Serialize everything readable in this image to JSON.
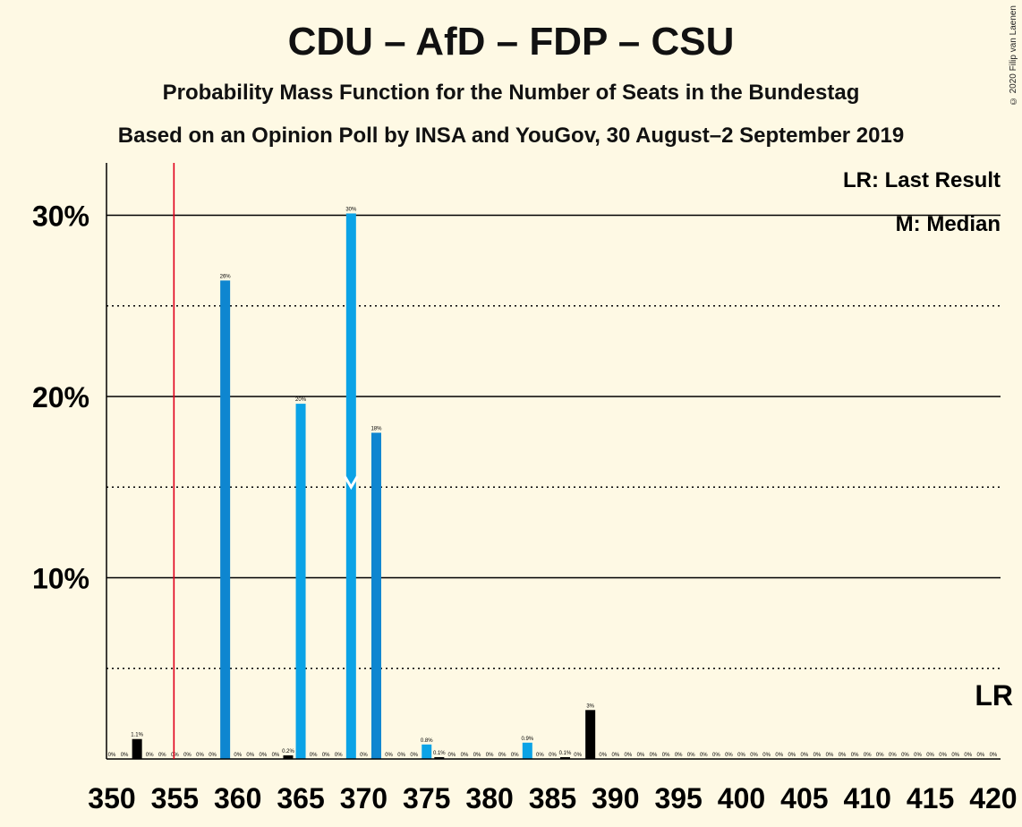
{
  "chart_data": {
    "type": "bar",
    "title": "CDU – AfD – FDP – CSU",
    "subtitle": "Probability Mass Function for the Number of Seats in the Bundestag",
    "subtitle2": "Based on an Opinion Poll by INSA and YouGov, 30 August–2 September 2019",
    "copyright": "© 2020 Filip van Laenen",
    "x_ticks": [
      "350",
      "355",
      "360",
      "365",
      "370",
      "375",
      "380",
      "385",
      "390",
      "395",
      "400",
      "405",
      "410",
      "415",
      "420"
    ],
    "y_ticks": [
      "10%",
      "20%",
      "30%"
    ],
    "xlim": [
      349.5,
      420.5
    ],
    "ylim": [
      0,
      33
    ],
    "legend": {
      "lr": "LR: Last Result",
      "m": "M: Median"
    },
    "last_result": 355,
    "median": 369,
    "lr_label": "LR",
    "bars": [
      {
        "seat": 350,
        "value": 0,
        "label": "0%",
        "color": "#000000"
      },
      {
        "seat": 351,
        "value": 0,
        "label": "0%",
        "color": "#000000"
      },
      {
        "seat": 352,
        "value": 1.1,
        "label": "1.1%",
        "color": "#000000"
      },
      {
        "seat": 353,
        "value": 0,
        "label": "0%",
        "color": "#000000"
      },
      {
        "seat": 354,
        "value": 0,
        "label": "0%",
        "color": "#000000"
      },
      {
        "seat": 355,
        "value": 0,
        "label": "0%",
        "color": "#000000"
      },
      {
        "seat": 356,
        "value": 0,
        "label": "0%",
        "color": "#000000"
      },
      {
        "seat": 357,
        "value": 0,
        "label": "0%",
        "color": "#000000"
      },
      {
        "seat": 358,
        "value": 0,
        "label": "0%",
        "color": "#000000"
      },
      {
        "seat": 359,
        "value": 26.4,
        "label": "26%",
        "color": "#0e86d0"
      },
      {
        "seat": 360,
        "value": 0,
        "label": "0%",
        "color": "#000000"
      },
      {
        "seat": 361,
        "value": 0,
        "label": "0%",
        "color": "#000000"
      },
      {
        "seat": 362,
        "value": 0,
        "label": "0%",
        "color": "#000000"
      },
      {
        "seat": 363,
        "value": 0,
        "label": "0%",
        "color": "#000000"
      },
      {
        "seat": 364,
        "value": 0.2,
        "label": "0.2%",
        "color": "#000000"
      },
      {
        "seat": 365,
        "value": 19.6,
        "label": "20%",
        "color": "#0ba3e6"
      },
      {
        "seat": 366,
        "value": 0,
        "label": "0%",
        "color": "#000000"
      },
      {
        "seat": 367,
        "value": 0,
        "label": "0%",
        "color": "#000000"
      },
      {
        "seat": 368,
        "value": 0,
        "label": "0%",
        "color": "#000000"
      },
      {
        "seat": 369,
        "value": 30.1,
        "label": "30%",
        "color": "#0ba3e6"
      },
      {
        "seat": 370,
        "value": 0,
        "label": "0%",
        "color": "#000000"
      },
      {
        "seat": 371,
        "value": 18,
        "label": "18%",
        "color": "#0e86d0"
      },
      {
        "seat": 372,
        "value": 0,
        "label": "0%",
        "color": "#000000"
      },
      {
        "seat": 373,
        "value": 0,
        "label": "0%",
        "color": "#000000"
      },
      {
        "seat": 374,
        "value": 0,
        "label": "0%",
        "color": "#000000"
      },
      {
        "seat": 375,
        "value": 0.8,
        "label": "0.8%",
        "color": "#0ba3e6"
      },
      {
        "seat": 376,
        "value": 0.1,
        "label": "0.1%",
        "color": "#000000"
      },
      {
        "seat": 377,
        "value": 0,
        "label": "0%",
        "color": "#000000"
      },
      {
        "seat": 378,
        "value": 0,
        "label": "0%",
        "color": "#000000"
      },
      {
        "seat": 379,
        "value": 0,
        "label": "0%",
        "color": "#000000"
      },
      {
        "seat": 380,
        "value": 0,
        "label": "0%",
        "color": "#000000"
      },
      {
        "seat": 381,
        "value": 0,
        "label": "0%",
        "color": "#000000"
      },
      {
        "seat": 382,
        "value": 0,
        "label": "0%",
        "color": "#000000"
      },
      {
        "seat": 383,
        "value": 0.9,
        "label": "0.9%",
        "color": "#0ba3e6"
      },
      {
        "seat": 384,
        "value": 0,
        "label": "0%",
        "color": "#000000"
      },
      {
        "seat": 385,
        "value": 0,
        "label": "0%",
        "color": "#000000"
      },
      {
        "seat": 386,
        "value": 0.1,
        "label": "0.1%",
        "color": "#000000"
      },
      {
        "seat": 387,
        "value": 0,
        "label": "0%",
        "color": "#000000"
      },
      {
        "seat": 388,
        "value": 2.7,
        "label": "3%",
        "color": "#000000"
      },
      {
        "seat": 389,
        "value": 0,
        "label": "0%",
        "color": "#000000"
      },
      {
        "seat": 390,
        "value": 0,
        "label": "0%",
        "color": "#000000"
      },
      {
        "seat": 391,
        "value": 0,
        "label": "0%",
        "color": "#000000"
      },
      {
        "seat": 392,
        "value": 0,
        "label": "0%",
        "color": "#000000"
      },
      {
        "seat": 393,
        "value": 0,
        "label": "0%",
        "color": "#000000"
      },
      {
        "seat": 394,
        "value": 0,
        "label": "0%",
        "color": "#000000"
      },
      {
        "seat": 395,
        "value": 0,
        "label": "0%",
        "color": "#000000"
      },
      {
        "seat": 396,
        "value": 0,
        "label": "0%",
        "color": "#000000"
      },
      {
        "seat": 397,
        "value": 0,
        "label": "0%",
        "color": "#000000"
      },
      {
        "seat": 398,
        "value": 0,
        "label": "0%",
        "color": "#000000"
      },
      {
        "seat": 399,
        "value": 0,
        "label": "0%",
        "color": "#000000"
      },
      {
        "seat": 400,
        "value": 0,
        "label": "0%",
        "color": "#000000"
      },
      {
        "seat": 401,
        "value": 0,
        "label": "0%",
        "color": "#000000"
      },
      {
        "seat": 402,
        "value": 0,
        "label": "0%",
        "color": "#000000"
      },
      {
        "seat": 403,
        "value": 0,
        "label": "0%",
        "color": "#000000"
      },
      {
        "seat": 404,
        "value": 0,
        "label": "0%",
        "color": "#000000"
      },
      {
        "seat": 405,
        "value": 0,
        "label": "0%",
        "color": "#000000"
      },
      {
        "seat": 406,
        "value": 0,
        "label": "0%",
        "color": "#000000"
      },
      {
        "seat": 407,
        "value": 0,
        "label": "0%",
        "color": "#000000"
      },
      {
        "seat": 408,
        "value": 0,
        "label": "0%",
        "color": "#000000"
      },
      {
        "seat": 409,
        "value": 0,
        "label": "0%",
        "color": "#000000"
      },
      {
        "seat": 410,
        "value": 0,
        "label": "0%",
        "color": "#000000"
      },
      {
        "seat": 411,
        "value": 0,
        "label": "0%",
        "color": "#000000"
      },
      {
        "seat": 412,
        "value": 0,
        "label": "0%",
        "color": "#000000"
      },
      {
        "seat": 413,
        "value": 0,
        "label": "0%",
        "color": "#000000"
      },
      {
        "seat": 414,
        "value": 0,
        "label": "0%",
        "color": "#000000"
      },
      {
        "seat": 415,
        "value": 0,
        "label": "0%",
        "color": "#000000"
      },
      {
        "seat": 416,
        "value": 0,
        "label": "0%",
        "color": "#000000"
      },
      {
        "seat": 417,
        "value": 0,
        "label": "0%",
        "color": "#000000"
      },
      {
        "seat": 418,
        "value": 0,
        "label": "0%",
        "color": "#000000"
      },
      {
        "seat": 419,
        "value": 0,
        "label": "0%",
        "color": "#000000"
      },
      {
        "seat": 420,
        "value": 0,
        "label": "0%",
        "color": "#000000"
      }
    ],
    "colors": {
      "background": "#fef9e4",
      "last_result_line": "#e0001b",
      "median_marker": "#ffffff"
    }
  }
}
